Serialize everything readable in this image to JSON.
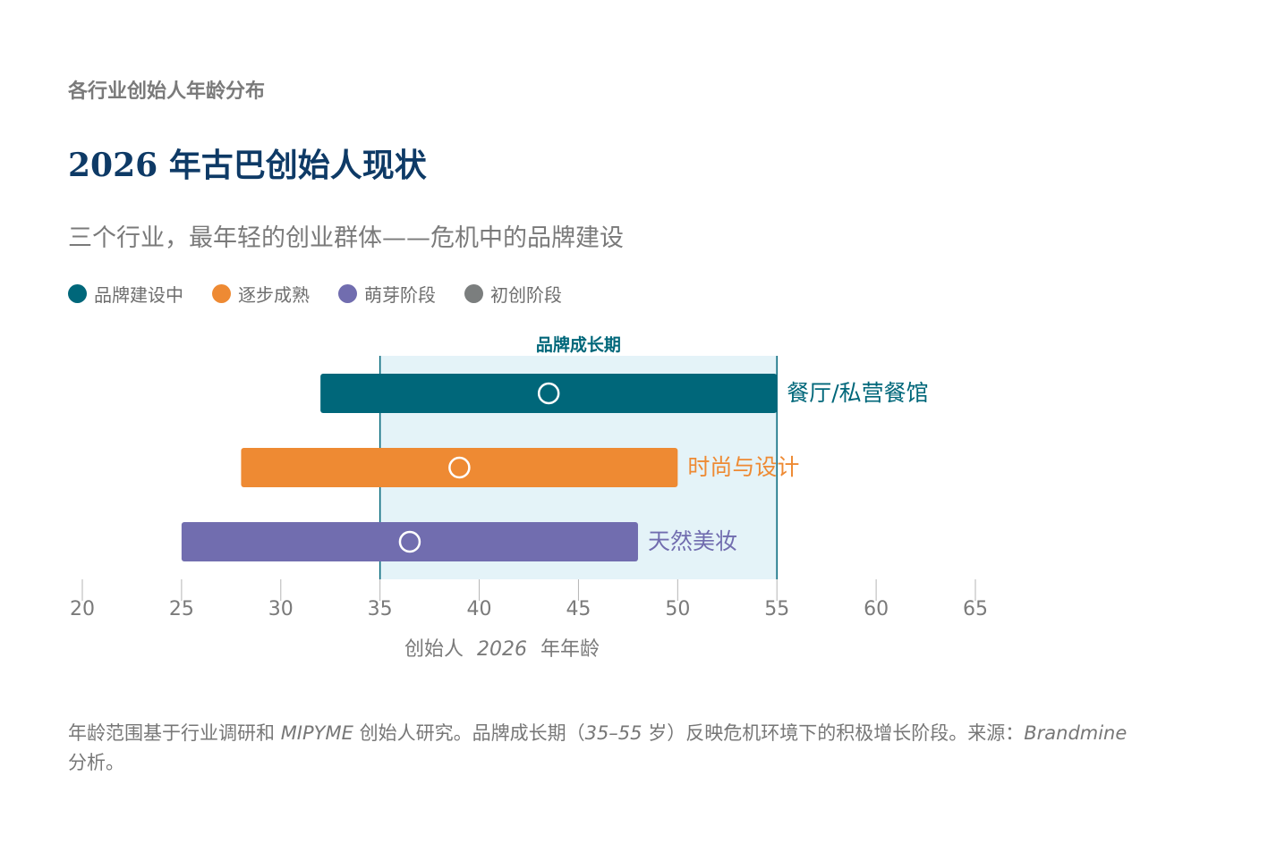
{
  "kicker": "各行业创始人年龄分布",
  "title": "2026 年古巴创始人现状",
  "subtitle": "三个行业，最年轻的创业群体——危机中的品牌建设",
  "legend": [
    {
      "label": "品牌建设中",
      "color": "#00677a"
    },
    {
      "label": "逐步成熟",
      "color": "#ee8a33"
    },
    {
      "label": "萌芽阶段",
      "color": "#716daf"
    },
    {
      "label": "初创阶段",
      "color": "#7b7e7e"
    }
  ],
  "chart_data": {
    "type": "bar",
    "orientation": "horizontal-range",
    "xlabel_prefix": "创始人",
    "xlabel_year": "2026",
    "xlabel_suffix": "年年龄",
    "xlim": [
      20,
      65
    ],
    "xticks": [
      20,
      25,
      30,
      35,
      40,
      45,
      50,
      55,
      60,
      65
    ],
    "band": {
      "label": "品牌成长期",
      "start": 35,
      "end": 55,
      "color": "#e4f3f8",
      "edge_color": "#00677a"
    },
    "series": [
      {
        "name": "餐厅/私营餐馆",
        "start": 32,
        "end": 55,
        "marker": 43.5,
        "color": "#00677a"
      },
      {
        "name": "时尚与设计",
        "start": 28,
        "end": 50,
        "marker": 39,
        "color": "#ee8a33"
      },
      {
        "name": "天然美妆",
        "start": 25,
        "end": 48,
        "marker": 36.5,
        "color": "#716daf"
      }
    ],
    "axis_color": "#b5b5b5",
    "tick_label_color": "#7a7a7a"
  },
  "footnote": {
    "part1": "年龄范围基于行业调研和 ",
    "part2_italic": "MIPYME",
    "part3": " 创始人研究。品牌成长期（",
    "part4_italic": "35–55",
    "part5": " 岁）反映危机环境下的积极增长阶段。来源：",
    "part6_italic": "Brandmine",
    "part7": " 分析。"
  }
}
